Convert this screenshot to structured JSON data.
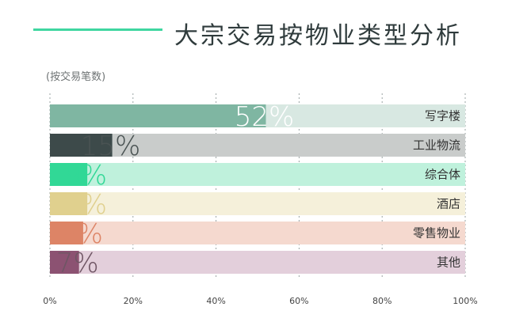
{
  "header": {
    "title": "大宗交易按物业类型分析",
    "accent_color": "#3fd6a0"
  },
  "chart_data": {
    "type": "bar",
    "orientation": "horizontal",
    "title": "大宗交易按物业类型分析",
    "unit_note": "(按交易笔数)",
    "xlim": [
      0,
      100
    ],
    "x_ticks": [
      "0%",
      "20%",
      "40%",
      "60%",
      "80%",
      "100%"
    ],
    "grid": "vertical dashed",
    "categories": [
      "写字楼",
      "工业物流",
      "综合体",
      "酒店",
      "零售物业",
      "其他"
    ],
    "values": [
      52,
      15,
      9,
      9,
      8,
      7
    ],
    "value_labels": [
      "52%",
      "15%",
      "9%",
      "9%",
      "8%",
      "7%"
    ],
    "colors": [
      "#7fb6a2",
      "#3d4a4a",
      "#31d896",
      "#e0d08e",
      "#dd8466",
      "#8c5272"
    ],
    "track_colors": [
      "#d8e8e2",
      "#c9cccb",
      "#bff1dc",
      "#f5f0da",
      "#f5d9cf",
      "#e3cfdb"
    ],
    "label_colors": [
      "#ffffff",
      "#4a5353",
      "#31d896",
      "#e0d08e",
      "#dd8466",
      "#6f5564"
    ]
  }
}
